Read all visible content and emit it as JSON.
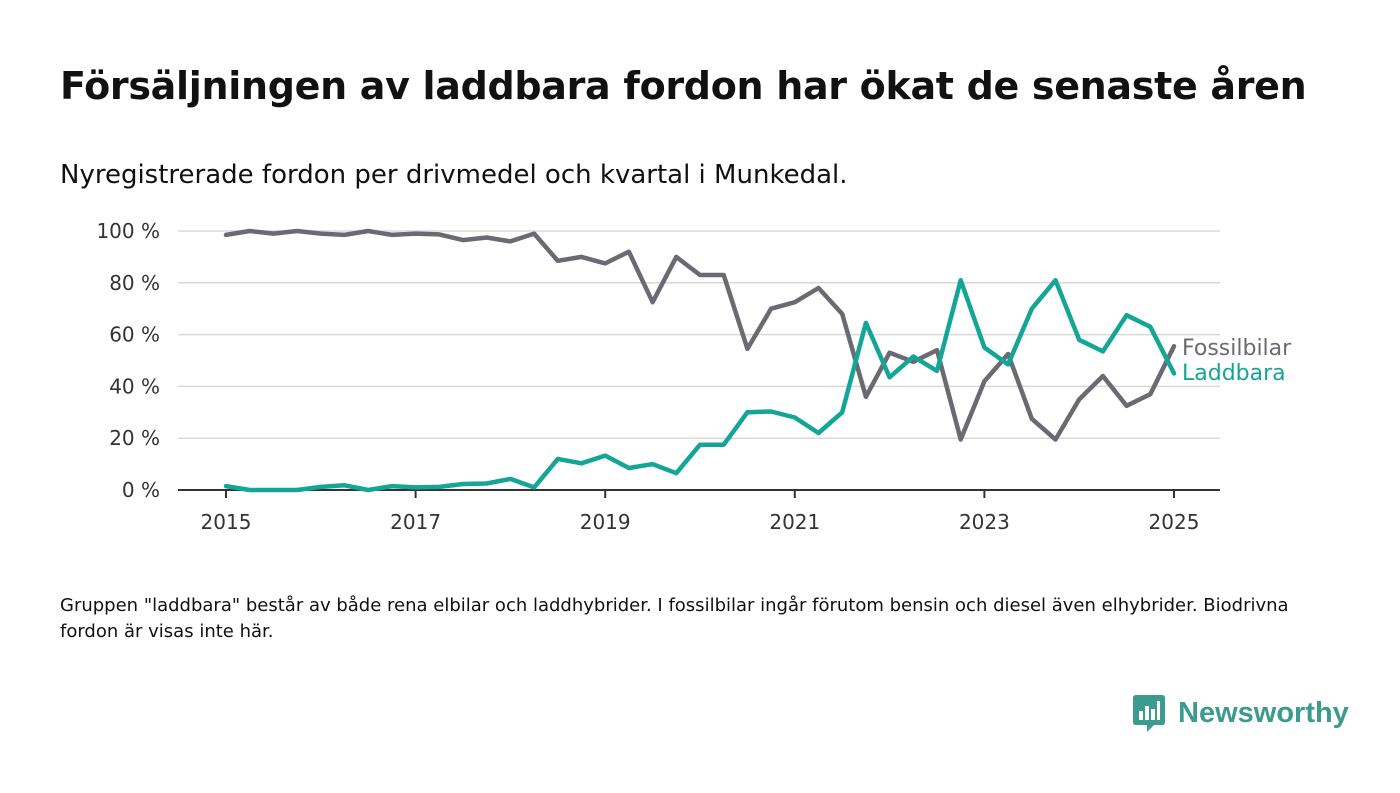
{
  "title": "Försäljningen av laddbara fordon har ökat de senaste åren",
  "subtitle": "Nyregistrerade fordon per drivmedel och kvartal i Munkedal.",
  "footnote": "Gruppen \"laddbara\" består av både rena elbilar och laddhybrider. I fossilbilar ingår förutom bensin och diesel även elhybrider. Biodrivna fordon är visas inte här.",
  "brand": {
    "name": "Newsworthy",
    "color": "#3a9b8e"
  },
  "chart_data": {
    "type": "line",
    "title": "Försäljningen av laddbara fordon har ökat de senaste åren",
    "subtitle": "Nyregistrerade fordon per drivmedel och kvartal i Munkedal.",
    "xlabel": "",
    "ylabel": "",
    "x_ticks": [
      "2015",
      "2017",
      "2019",
      "2021",
      "2023",
      "2025"
    ],
    "y_ticks": [
      "0 %",
      "20 %",
      "40 %",
      "60 %",
      "80 %",
      "100 %"
    ],
    "ylim": [
      0,
      100
    ],
    "grid": true,
    "legend": "inline-right",
    "x": [
      "2015-Q1",
      "2015-Q2",
      "2015-Q3",
      "2015-Q4",
      "2016-Q1",
      "2016-Q2",
      "2016-Q3",
      "2016-Q4",
      "2017-Q1",
      "2017-Q2",
      "2017-Q3",
      "2017-Q4",
      "2018-Q1",
      "2018-Q2",
      "2018-Q3",
      "2018-Q4",
      "2019-Q1",
      "2019-Q2",
      "2019-Q3",
      "2019-Q4",
      "2020-Q1",
      "2020-Q2",
      "2020-Q3",
      "2020-Q4",
      "2021-Q1",
      "2021-Q2",
      "2021-Q3",
      "2021-Q4",
      "2022-Q1",
      "2022-Q2",
      "2022-Q3",
      "2022-Q4",
      "2023-Q1",
      "2023-Q2",
      "2023-Q3",
      "2023-Q4",
      "2024-Q1",
      "2024-Q2",
      "2024-Q3",
      "2024-Q4",
      "2025-Q1"
    ],
    "series": [
      {
        "name": "Fossilbilar",
        "color": "#6b6a72",
        "values": [
          98.5,
          100,
          99,
          100,
          99,
          98.5,
          100,
          98.5,
          99,
          98.7,
          96.5,
          97.5,
          96,
          99,
          88.5,
          90,
          87.5,
          92,
          72.5,
          90,
          83,
          83,
          54.5,
          70,
          72.5,
          78,
          68,
          36,
          53,
          49.5,
          54,
          19.5,
          42,
          52.5,
          27.5,
          19.5,
          35,
          44,
          32.5,
          37,
          55.5
        ]
      },
      {
        "name": "Laddbara",
        "color": "#13a596",
        "values": [
          1.5,
          0,
          0,
          0,
          1.2,
          1.8,
          0,
          1.5,
          1,
          1.2,
          2.3,
          2.5,
          4.3,
          1,
          12,
          10.3,
          13.3,
          8.5,
          10,
          6.5,
          17.5,
          17.5,
          30,
          30.3,
          28,
          22,
          30,
          64.5,
          43.5,
          51.5,
          46,
          81,
          55,
          48.5,
          70,
          81,
          58,
          53.5,
          67.5,
          63,
          45
        ]
      }
    ]
  }
}
